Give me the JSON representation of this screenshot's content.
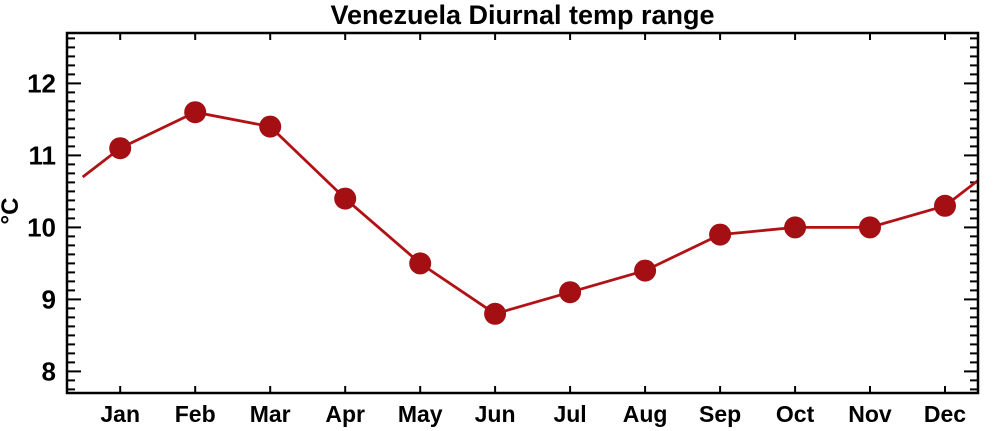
{
  "chart_data": {
    "type": "line",
    "title": "Venezuela Diurnal temp range",
    "ylabel": "°C",
    "xlabel": "",
    "categories": [
      "Jan",
      "Feb",
      "Mar",
      "Apr",
      "May",
      "Jun",
      "Jul",
      "Aug",
      "Sep",
      "Oct",
      "Nov",
      "Dec"
    ],
    "values": [
      11.1,
      11.6,
      11.4,
      10.4,
      9.5,
      8.8,
      9.1,
      9.4,
      9.9,
      10.0,
      10.0,
      10.3
    ],
    "edge_points": {
      "left": {
        "month_pos": 0.5,
        "value": 10.7
      },
      "right": {
        "month_pos": 12.5,
        "value": 10.7
      }
    },
    "x_range": [
      0.29,
      12.44
    ],
    "ylim": [
      7.7,
      12.7
    ],
    "y_major_ticks": [
      8,
      9,
      10,
      11,
      12
    ],
    "y_minor_step": 0.125,
    "grid": false,
    "legend": false,
    "marker": {
      "shape": "circle",
      "radius_px": 11
    },
    "colors": {
      "line": "#B11215",
      "marker": "#A30F13",
      "axis": "#000000",
      "text": "#000000",
      "background": "#FFFFFF"
    }
  }
}
